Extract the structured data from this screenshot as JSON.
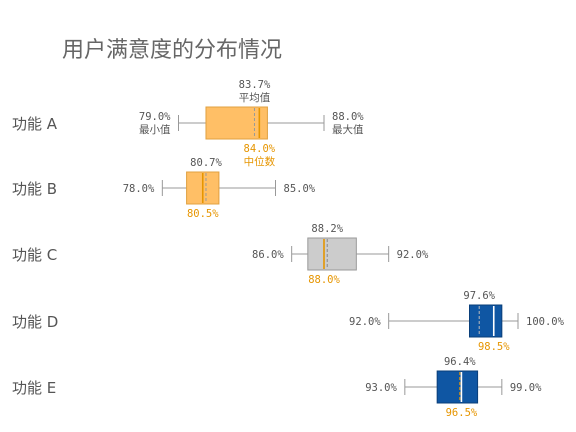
{
  "chart_data": {
    "type": "box",
    "title": "用户满意度的分布情况",
    "xlim": [
      70,
      100
    ],
    "annotations": {
      "mean": "平均值",
      "min": "最小值",
      "max": "最大值",
      "median": "中位数"
    },
    "series": [
      {
        "category": "功能 A",
        "min": 79.0,
        "q1": 80.7,
        "median": 84.0,
        "mean": 83.7,
        "q3": 84.5,
        "max": 88.0,
        "min_label": "79.0%",
        "max_label": "88.0%",
        "mean_label": "83.7%",
        "median_label": "84.0%",
        "fill": "#FFBF66",
        "stroke": "#E0A040",
        "median_color": "#E69500",
        "mean_color": "#999999",
        "label_color": "#E69500"
      },
      {
        "category": "功能 B",
        "min": 78.0,
        "q1": 79.5,
        "median": 80.5,
        "mean": 80.7,
        "q3": 81.5,
        "max": 85.0,
        "min_label": "78.0%",
        "max_label": "85.0%",
        "mean_label": "80.7%",
        "median_label": "80.5%",
        "fill": "#FFBF66",
        "stroke": "#E0A040",
        "median_color": "#E69500",
        "mean_color": "#999999",
        "label_color": "#E69500"
      },
      {
        "category": "功能 C",
        "min": 86.0,
        "q1": 87.0,
        "median": 88.0,
        "mean": 88.2,
        "q3": 90.0,
        "max": 92.0,
        "min_label": "86.0%",
        "max_label": "92.0%",
        "mean_label": "88.2%",
        "median_label": "88.0%",
        "fill": "#CCCCCC",
        "stroke": "#999999",
        "median_color": "#E69500",
        "mean_color": "#888888",
        "label_color": "#E69500"
      },
      {
        "category": "功能 D",
        "min": 92.0,
        "q1": 97.0,
        "median": 98.5,
        "mean": 97.6,
        "q3": 99.0,
        "max": 100.0,
        "min_label": "92.0%",
        "max_label": "100.0%",
        "mean_label": "97.6%",
        "median_label": "98.5%",
        "fill": "#0F56A3",
        "stroke": "#0A3F7A",
        "median_color": "#FFFFFF",
        "mean_color": "#BBBBBB",
        "label_color": "#E69500"
      },
      {
        "category": "功能 E",
        "min": 93.0,
        "q1": 95.0,
        "median": 96.5,
        "mean": 96.4,
        "q3": 97.5,
        "max": 99.0,
        "min_label": "93.0%",
        "max_label": "99.0%",
        "mean_label": "96.4%",
        "median_label": "96.5%",
        "fill": "#0F56A3",
        "stroke": "#0A3F7A",
        "median_color": "#FFFFFF",
        "mean_color": "#E69500",
        "label_color": "#E69500"
      }
    ]
  }
}
